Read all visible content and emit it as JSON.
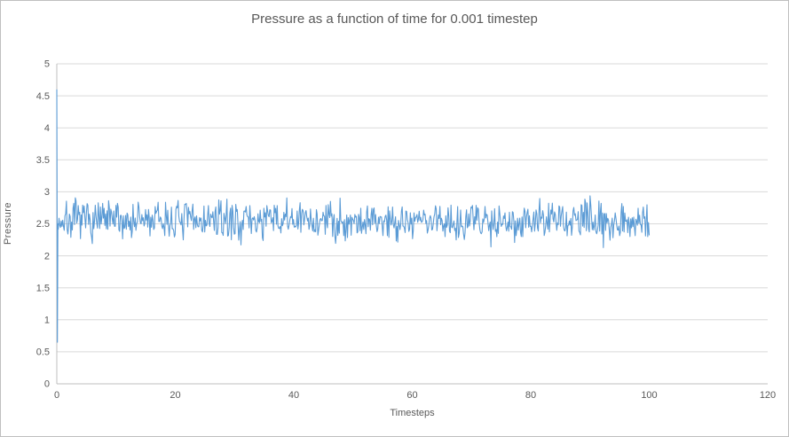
{
  "chart_data": {
    "type": "line",
    "title": "Pressure as a function of time for 0.001 timestep",
    "xlabel": "Timesteps",
    "ylabel": "Pressure",
    "xlim": [
      0,
      120
    ],
    "ylim": [
      0,
      5
    ],
    "x_ticks": [
      0,
      20,
      40,
      60,
      80,
      100,
      120
    ],
    "y_ticks": [
      0,
      0.5,
      1,
      1.5,
      2,
      2.5,
      3,
      3.5,
      4,
      4.5,
      5
    ],
    "grid": "horizontal",
    "legend": "none",
    "colors": {
      "line": "#5B9BD5",
      "gridline": "#D9D9D9",
      "axis_line": "#BFBFBF",
      "tick_label": "#595959",
      "title": "#595959",
      "background": "#FFFFFF"
    },
    "series": [
      {
        "name": "Pressure",
        "color": "#5B9BD5",
        "initial_transient": [
          [
            0,
            4.6
          ],
          [
            0.1,
            0.65
          ],
          [
            0.18,
            2.5
          ]
        ],
        "noise": {
          "x_start": 0.25,
          "x_end": 100,
          "points": 800,
          "mean": 2.55,
          "scale": 0.3,
          "observed_min": 2.05,
          "observed_max": 3.1,
          "seed": 7
        }
      }
    ]
  }
}
